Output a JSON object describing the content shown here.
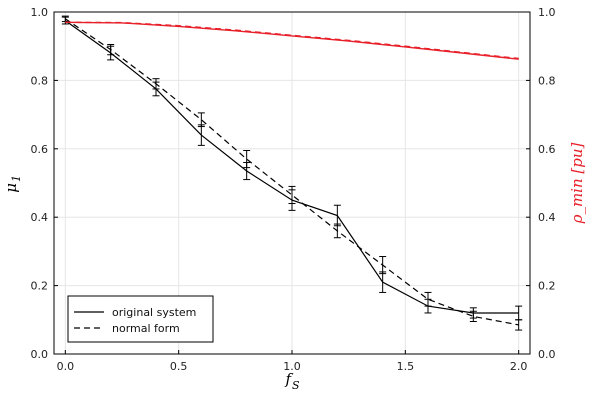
{
  "chart_data": {
    "type": "line",
    "x_axis": {
      "label": "f_S",
      "range": [
        -0.05,
        2.05
      ],
      "ticks": [
        0.0,
        0.5,
        1.0,
        1.5,
        2.0
      ],
      "tick_labels": [
        "0.0",
        "0.5",
        "1.0",
        "1.5",
        "2.0"
      ]
    },
    "y_axis_left": {
      "label": "μ_1",
      "range": [
        0,
        1
      ],
      "ticks": [
        0.0,
        0.2,
        0.4,
        0.6,
        0.8,
        1.0
      ],
      "tick_labels": [
        "0.0",
        "0.2",
        "0.4",
        "0.6",
        "0.8",
        "1.0"
      ]
    },
    "y_axis_right": {
      "label": "ρ_min [pu]",
      "color": "#e8202a",
      "range": [
        0,
        1
      ],
      "ticks": [
        0.0,
        0.2,
        0.4,
        0.6,
        0.8,
        1.0
      ],
      "tick_labels": [
        "0.0",
        "0.2",
        "0.4",
        "0.6",
        "0.8",
        "1.0"
      ]
    },
    "grid": true,
    "legend_position": "bottom-left",
    "series": [
      {
        "name": "original system",
        "style": "solid",
        "color": "#000000",
        "axis": "left",
        "x": [
          0.0,
          0.2,
          0.4,
          0.6,
          0.8,
          1.0,
          1.2,
          1.4,
          1.6,
          1.8,
          2.0
        ],
        "y": [
          0.975,
          0.88,
          0.775,
          0.64,
          0.535,
          0.45,
          0.405,
          0.21,
          0.14,
          0.12,
          0.12
        ],
        "err": [
          0.01,
          0.02,
          0.02,
          0.03,
          0.025,
          0.03,
          0.03,
          0.03,
          0.02,
          0.015,
          0.02
        ]
      },
      {
        "name": "normal form",
        "style": "dashed",
        "color": "#000000",
        "axis": "left",
        "x": [
          0.0,
          0.2,
          0.4,
          0.6,
          0.8,
          1.0,
          1.2,
          1.4,
          1.6,
          1.8,
          2.0
        ],
        "y": [
          0.98,
          0.89,
          0.79,
          0.685,
          0.57,
          0.465,
          0.36,
          0.26,
          0.16,
          0.11,
          0.085
        ],
        "err": [
          0.008,
          0.015,
          0.015,
          0.02,
          0.025,
          0.025,
          0.02,
          0.025,
          0.02,
          0.015,
          0.015
        ]
      },
      {
        "style": "solid",
        "color": "#e8202a",
        "axis": "right",
        "x": [
          0.0,
          0.25,
          0.5,
          0.75,
          1.0,
          1.25,
          1.5,
          1.75,
          2.0
        ],
        "y": [
          0.97,
          0.968,
          0.958,
          0.945,
          0.93,
          0.915,
          0.898,
          0.88,
          0.862
        ]
      },
      {
        "style": "dashed",
        "color": "#e8202a",
        "axis": "right",
        "x": [
          0.0,
          0.25,
          0.5,
          0.75,
          1.0,
          1.25,
          1.5,
          1.75,
          2.0
        ],
        "y": [
          0.97,
          0.969,
          0.96,
          0.947,
          0.932,
          0.917,
          0.9,
          0.882,
          0.864
        ]
      }
    ]
  }
}
